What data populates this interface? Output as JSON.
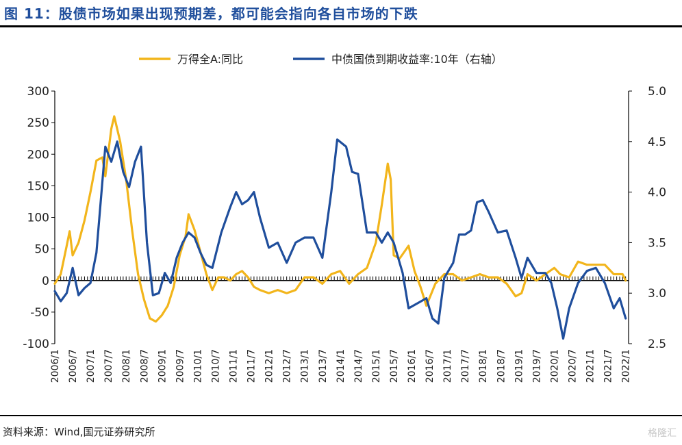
{
  "header": {
    "title": "图 11：股债市场如果出现预期差，都可能会指向各自市场的下跌"
  },
  "footer": {
    "source": "资料来源：Wind,国元证券研究所",
    "watermark": "格隆汇"
  },
  "chart_data": {
    "type": "line",
    "title": "图 11：股债市场如果出现预期差，都可能会指向各自市场的下跌",
    "legend_position": "top",
    "grid": false,
    "x_tick_labels": [
      "2006/1",
      "2006/7",
      "2007/1",
      "2007/7",
      "2008/1",
      "2008/7",
      "2009/1",
      "2009/7",
      "2010/1",
      "2010/7",
      "2011/1",
      "2011/7",
      "2012/1",
      "2012/7",
      "2013/1",
      "2013/7",
      "2014/1",
      "2014/7",
      "2015/1",
      "2015/7",
      "2016/1",
      "2016/7",
      "2017/1",
      "2017/7",
      "2018/1",
      "2018/7",
      "2019/1",
      "2019/7",
      "2020/1",
      "2020/7",
      "2021/1",
      "2021/7",
      "2022/1"
    ],
    "y_left": {
      "ticks": [
        -100,
        -50,
        0,
        50,
        100,
        150,
        200,
        250,
        300
      ],
      "ylim": [
        -100,
        300
      ]
    },
    "y_right": {
      "ticks": [
        2.5,
        3.0,
        3.5,
        4.0,
        4.5,
        5.0
      ],
      "ylim": [
        2.5,
        5.0
      ]
    },
    "series": [
      {
        "name": "万得全A:同比",
        "axis": "left",
        "color": "#f2b51b",
        "points": [
          [
            "2006/1",
            -5
          ],
          [
            "2006/3",
            10
          ],
          [
            "2006/5",
            55
          ],
          [
            "2006/6",
            78
          ],
          [
            "2006/7",
            40
          ],
          [
            "2006/9",
            60
          ],
          [
            "2006/11",
            95
          ],
          [
            "2007/1",
            140
          ],
          [
            "2007/3",
            190
          ],
          [
            "2007/5",
            195
          ],
          [
            "2007/6",
            165
          ],
          [
            "2007/8",
            240
          ],
          [
            "2007/9",
            260
          ],
          [
            "2007/11",
            220
          ],
          [
            "2008/1",
            160
          ],
          [
            "2008/3",
            80
          ],
          [
            "2008/5",
            10
          ],
          [
            "2008/7",
            -30
          ],
          [
            "2008/9",
            -60
          ],
          [
            "2008/11",
            -65
          ],
          [
            "2009/1",
            -55
          ],
          [
            "2009/3",
            -40
          ],
          [
            "2009/5",
            -10
          ],
          [
            "2009/7",
            40
          ],
          [
            "2009/9",
            70
          ],
          [
            "2009/10",
            105
          ],
          [
            "2009/12",
            80
          ],
          [
            "2010/2",
            45
          ],
          [
            "2010/4",
            10
          ],
          [
            "2010/6",
            -15
          ],
          [
            "2010/8",
            5
          ],
          [
            "2010/10",
            5
          ],
          [
            "2010/12",
            0
          ],
          [
            "2011/2",
            10
          ],
          [
            "2011/4",
            15
          ],
          [
            "2011/6",
            5
          ],
          [
            "2011/8",
            -10
          ],
          [
            "2011/10",
            -15
          ],
          [
            "2012/1",
            -20
          ],
          [
            "2012/4",
            -15
          ],
          [
            "2012/7",
            -20
          ],
          [
            "2012/10",
            -15
          ],
          [
            "2013/1",
            5
          ],
          [
            "2013/4",
            5
          ],
          [
            "2013/7",
            -5
          ],
          [
            "2013/10",
            10
          ],
          [
            "2014/1",
            15
          ],
          [
            "2014/4",
            -5
          ],
          [
            "2014/7",
            10
          ],
          [
            "2014/10",
            20
          ],
          [
            "2015/1",
            60
          ],
          [
            "2015/3",
            120
          ],
          [
            "2015/5",
            185
          ],
          [
            "2015/6",
            160
          ],
          [
            "2015/7",
            40
          ],
          [
            "2015/9",
            35
          ],
          [
            "2015/12",
            55
          ],
          [
            "2016/2",
            15
          ],
          [
            "2016/4",
            -10
          ],
          [
            "2016/6",
            -40
          ],
          [
            "2016/9",
            -5
          ],
          [
            "2016/12",
            10
          ],
          [
            "2017/3",
            10
          ],
          [
            "2017/6",
            0
          ],
          [
            "2017/9",
            5
          ],
          [
            "2017/12",
            10
          ],
          [
            "2018/3",
            5
          ],
          [
            "2018/6",
            5
          ],
          [
            "2018/9",
            -5
          ],
          [
            "2018/12",
            -25
          ],
          [
            "2019/2",
            -20
          ],
          [
            "2019/4",
            10
          ],
          [
            "2019/7",
            0
          ],
          [
            "2019/10",
            10
          ],
          [
            "2020/1",
            20
          ],
          [
            "2020/3",
            10
          ],
          [
            "2020/6",
            5
          ],
          [
            "2020/9",
            30
          ],
          [
            "2020/12",
            25
          ],
          [
            "2021/3",
            25
          ],
          [
            "2021/6",
            25
          ],
          [
            "2021/9",
            10
          ],
          [
            "2021/12",
            10
          ],
          [
            "2022/1",
            0
          ]
        ]
      },
      {
        "name": "中债国债到期收益率:10年（右轴）",
        "axis": "right",
        "color": "#1f4e9c",
        "points": [
          [
            "2006/1",
            3.02
          ],
          [
            "2006/3",
            2.92
          ],
          [
            "2006/5",
            3.0
          ],
          [
            "2006/7",
            3.25
          ],
          [
            "2006/9",
            2.98
          ],
          [
            "2006/11",
            3.05
          ],
          [
            "2007/1",
            3.1
          ],
          [
            "2007/3",
            3.4
          ],
          [
            "2007/6",
            4.45
          ],
          [
            "2007/8",
            4.3
          ],
          [
            "2007/10",
            4.5
          ],
          [
            "2007/12",
            4.2
          ],
          [
            "2008/2",
            4.05
          ],
          [
            "2008/4",
            4.3
          ],
          [
            "2008/6",
            4.45
          ],
          [
            "2008/8",
            3.5
          ],
          [
            "2008/10",
            2.98
          ],
          [
            "2008/12",
            3.0
          ],
          [
            "2009/2",
            3.2
          ],
          [
            "2009/4",
            3.1
          ],
          [
            "2009/6",
            3.35
          ],
          [
            "2009/8",
            3.5
          ],
          [
            "2009/10",
            3.6
          ],
          [
            "2009/12",
            3.55
          ],
          [
            "2010/2",
            3.4
          ],
          [
            "2010/4",
            3.28
          ],
          [
            "2010/6",
            3.25
          ],
          [
            "2010/9",
            3.6
          ],
          [
            "2010/12",
            3.85
          ],
          [
            "2011/2",
            4.0
          ],
          [
            "2011/4",
            3.88
          ],
          [
            "2011/6",
            3.92
          ],
          [
            "2011/8",
            4.0
          ],
          [
            "2011/10",
            3.75
          ],
          [
            "2012/1",
            3.45
          ],
          [
            "2012/4",
            3.5
          ],
          [
            "2012/7",
            3.3
          ],
          [
            "2012/10",
            3.5
          ],
          [
            "2013/1",
            3.55
          ],
          [
            "2013/4",
            3.55
          ],
          [
            "2013/7",
            3.35
          ],
          [
            "2013/10",
            4.0
          ],
          [
            "2013/12",
            4.52
          ],
          [
            "2014/3",
            4.45
          ],
          [
            "2014/5",
            4.2
          ],
          [
            "2014/7",
            4.18
          ],
          [
            "2014/10",
            3.6
          ],
          [
            "2015/1",
            3.6
          ],
          [
            "2015/3",
            3.5
          ],
          [
            "2015/5",
            3.6
          ],
          [
            "2015/7",
            3.5
          ],
          [
            "2015/10",
            3.2
          ],
          [
            "2015/12",
            2.85
          ],
          [
            "2016/3",
            2.9
          ],
          [
            "2016/6",
            2.95
          ],
          [
            "2016/8",
            2.75
          ],
          [
            "2016/10",
            2.7
          ],
          [
            "2016/12",
            3.15
          ],
          [
            "2017/3",
            3.3
          ],
          [
            "2017/5",
            3.58
          ],
          [
            "2017/7",
            3.58
          ],
          [
            "2017/9",
            3.62
          ],
          [
            "2017/11",
            3.9
          ],
          [
            "2018/1",
            3.92
          ],
          [
            "2018/3",
            3.8
          ],
          [
            "2018/6",
            3.6
          ],
          [
            "2018/9",
            3.62
          ],
          [
            "2018/12",
            3.35
          ],
          [
            "2019/2",
            3.15
          ],
          [
            "2019/4",
            3.35
          ],
          [
            "2019/7",
            3.2
          ],
          [
            "2019/10",
            3.2
          ],
          [
            "2019/12",
            3.1
          ],
          [
            "2020/2",
            2.85
          ],
          [
            "2020/4",
            2.55
          ],
          [
            "2020/6",
            2.85
          ],
          [
            "2020/9",
            3.1
          ],
          [
            "2020/12",
            3.22
          ],
          [
            "2021/3",
            3.25
          ],
          [
            "2021/6",
            3.1
          ],
          [
            "2021/9",
            2.85
          ],
          [
            "2021/11",
            2.95
          ],
          [
            "2022/1",
            2.75
          ]
        ]
      }
    ]
  }
}
